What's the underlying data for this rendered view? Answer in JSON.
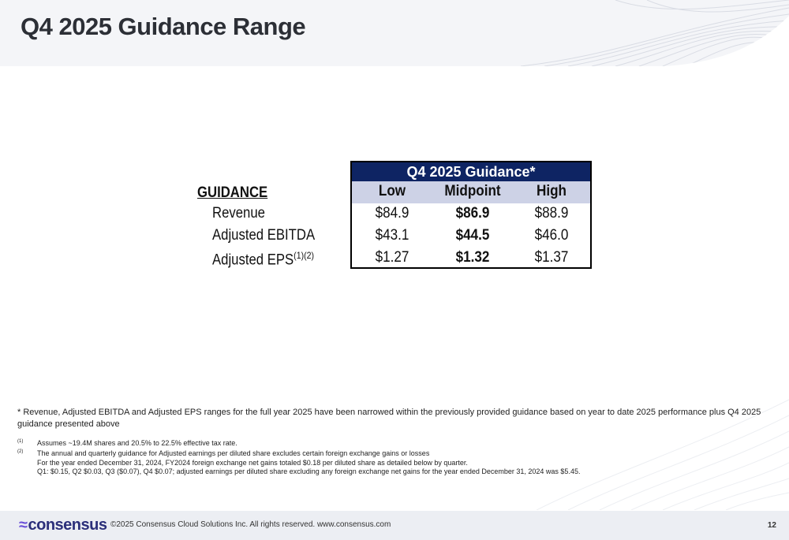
{
  "slide": {
    "title": "Q4 2025 Guidance Range",
    "page_number": "12"
  },
  "guidance": {
    "section_label": "GUIDANCE",
    "table_title": "Q4 2025 Guidance*",
    "columns": [
      "Low",
      "Midpoint",
      "High"
    ],
    "rows": [
      {
        "label": "Revenue",
        "sup": "",
        "low": "$84.9",
        "mid": "$86.9",
        "high": "$88.9"
      },
      {
        "label": "Adjusted EBITDA",
        "sup": "",
        "low": "$43.1",
        "mid": "$44.5",
        "high": "$46.0"
      },
      {
        "label": "Adjusted EPS",
        "sup": "(1)(2)",
        "low": "$1.27",
        "mid": "$1.32",
        "high": "$1.37"
      }
    ]
  },
  "notes": {
    "main": "* Revenue, Adjusted EBITDA and Adjusted EPS ranges for the full year 2025  have been narrowed within the previously provided guidance based on year to date 2025 performance plus Q4 2025 guidance presented above",
    "fn1_mark": "(1)",
    "fn1": "Assumes ~19.4M shares and 20.5% to 22.5% effective tax rate.",
    "fn2_mark": "(2)",
    "fn2_line1": "The annual and quarterly guidance for Adjusted earnings per diluted share excludes certain foreign exchange gains or losses",
    "fn2_line2": "For the year ended December 31, 2024, FY2024 foreign exchange net gains totaled $0.18 per diluted share as detailed below by quarter.",
    "fn2_line3": "Q1: $0.15, Q2 $0.03, Q3 ($0.07), Q4 $0.07; adjusted earnings per diluted share excluding any foreign exchange net gains for the year ended December 31, 2024 was $5.45."
  },
  "footer": {
    "logo_text": "consensus",
    "copyright": "©2025 Consensus Cloud Solutions Inc. All rights reserved. www.consensus.com"
  },
  "colors": {
    "table_header": "#0e2463",
    "table_subheader": "#cdd2e6",
    "logo": "#2b2f7a"
  }
}
